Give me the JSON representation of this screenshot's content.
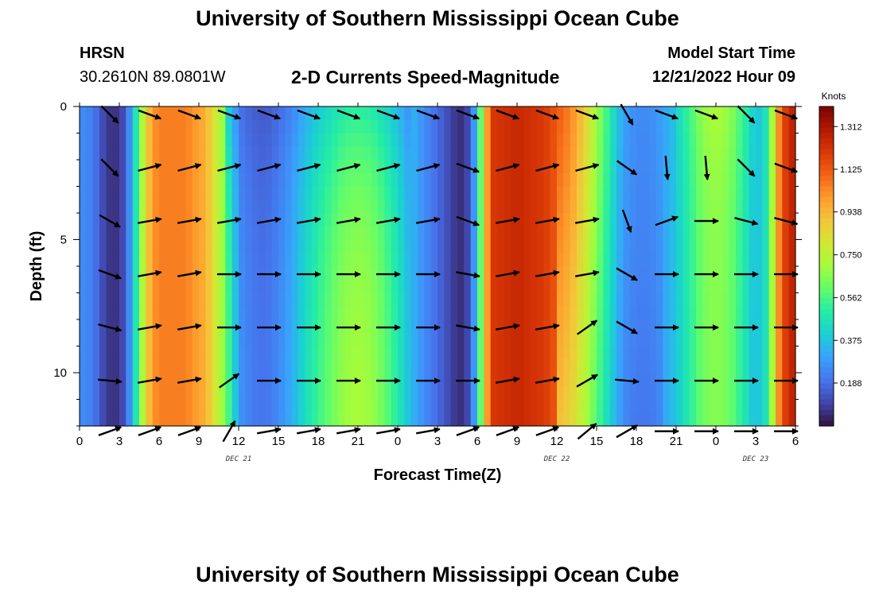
{
  "header": {
    "title": "University of Southern Mississippi Ocean Cube",
    "station": "HRSN",
    "coords": "30.2610N  89.0801W",
    "subtitle": "2-D Currents Speed-Magnitude",
    "model_start_label": "Model Start Time",
    "model_start_value": "12/21/2022 Hour 09"
  },
  "footer": {
    "title": "University of Southern Mississippi Ocean Cube"
  },
  "chart_data": {
    "type": "heatmap",
    "title": "2-D Currents Speed-Magnitude",
    "xlabel": "Forecast Time(Z)",
    "ylabel": "Depth (ft)",
    "x_hours_range": [
      0,
      54
    ],
    "y_range": [
      0,
      12
    ],
    "x_tick_labels": [
      "0",
      "3",
      "6",
      "9",
      "12",
      "15",
      "18",
      "21",
      "0",
      "3",
      "6",
      "9",
      "12",
      "15",
      "18",
      "21",
      "0",
      "3",
      "6"
    ],
    "y_ticks": [
      0,
      5,
      10
    ],
    "y_tick_labels": [
      "0",
      "5",
      "10"
    ],
    "date_labels": [
      {
        "text": "DEC 21",
        "hour": 12
      },
      {
        "text": "DEC 22",
        "hour": 36
      },
      {
        "text": "DEC 23",
        "hour": 51
      }
    ],
    "colorbar": {
      "unit": "Knots",
      "labels": [
        "1.312",
        "1.125",
        "0.938",
        "0.750",
        "0.562",
        "0.375",
        "0.188"
      ],
      "label_values": [
        1.312,
        1.125,
        0.938,
        0.75,
        0.562,
        0.375,
        0.188
      ],
      "vmin": 0.0,
      "vmax": 1.4,
      "colors": [
        "#30123b",
        "#4145ab",
        "#4675ed",
        "#39a2fc",
        "#1bcfd4",
        "#24eca6",
        "#61fc6c",
        "#a4fc3b",
        "#d1e834",
        "#f3c63a",
        "#fe9b2d",
        "#f36315",
        "#d93806",
        "#b11901",
        "#7a0402"
      ]
    },
    "speed_profile": {
      "hours": [
        0,
        1,
        1.5,
        2,
        2.5,
        3,
        3.5,
        4,
        4.5,
        5,
        5.5,
        6,
        8,
        9.5,
        10.5,
        11.5,
        12,
        13,
        14,
        15,
        16,
        17,
        18,
        19,
        20,
        21,
        22,
        23,
        24,
        25,
        26,
        27,
        28,
        28.5,
        29,
        29.5,
        30,
        30.5,
        31,
        33,
        35,
        37,
        38,
        39,
        40,
        41,
        42,
        43,
        44,
        45,
        46,
        47,
        48,
        49,
        50,
        51,
        52,
        52.5,
        53,
        54
      ],
      "values": [
        0.26,
        0.22,
        0.15,
        0.08,
        0.06,
        0.07,
        0.15,
        0.35,
        0.6,
        0.85,
        1.0,
        1.05,
        1.05,
        0.95,
        0.75,
        0.5,
        0.28,
        0.22,
        0.2,
        0.25,
        0.33,
        0.45,
        0.55,
        0.63,
        0.7,
        0.72,
        0.7,
        0.62,
        0.5,
        0.35,
        0.25,
        0.18,
        0.1,
        0.06,
        0.06,
        0.15,
        0.4,
        0.8,
        1.2,
        1.25,
        1.2,
        1.05,
        0.9,
        0.7,
        0.5,
        0.3,
        0.25,
        0.25,
        0.3,
        0.38,
        0.5,
        0.62,
        0.66,
        0.62,
        0.5,
        0.35,
        0.5,
        0.9,
        1.15,
        1.3
      ]
    },
    "vector_rows_depth": [
      0.3,
      2.3,
      4.3,
      6.3,
      8.3,
      10.3,
      12.2
    ],
    "vector_columns_hour": [
      3,
      6,
      9,
      12,
      15,
      18,
      21,
      24,
      27,
      30,
      33,
      36,
      39,
      42,
      45,
      48,
      51,
      54
    ],
    "vector_directions_deg": [
      [
        -45,
        -20,
        -20,
        -20,
        -20,
        -20,
        -20,
        -20,
        -20,
        -20,
        -20,
        -20,
        -20,
        -60,
        -20,
        -20,
        -45,
        -20
      ],
      [
        -45,
        15,
        15,
        15,
        15,
        15,
        15,
        15,
        15,
        -20,
        15,
        15,
        15,
        -35,
        -85,
        -85,
        -45,
        -20
      ],
      [
        -30,
        10,
        10,
        10,
        10,
        10,
        10,
        10,
        10,
        -20,
        10,
        10,
        10,
        -70,
        20,
        0,
        -15,
        -15
      ],
      [
        -20,
        10,
        10,
        0,
        0,
        0,
        0,
        0,
        0,
        -10,
        10,
        10,
        10,
        -30,
        0,
        0,
        0,
        0
      ],
      [
        -15,
        10,
        10,
        0,
        0,
        0,
        0,
        0,
        0,
        -10,
        10,
        10,
        35,
        -30,
        0,
        0,
        0,
        0
      ],
      [
        -5,
        10,
        10,
        35,
        0,
        0,
        0,
        0,
        0,
        0,
        10,
        10,
        30,
        -5,
        0,
        0,
        0,
        0
      ],
      [
        20,
        20,
        20,
        60,
        10,
        10,
        10,
        10,
        10,
        20,
        20,
        20,
        40,
        30,
        0,
        0,
        0,
        0
      ]
    ]
  }
}
